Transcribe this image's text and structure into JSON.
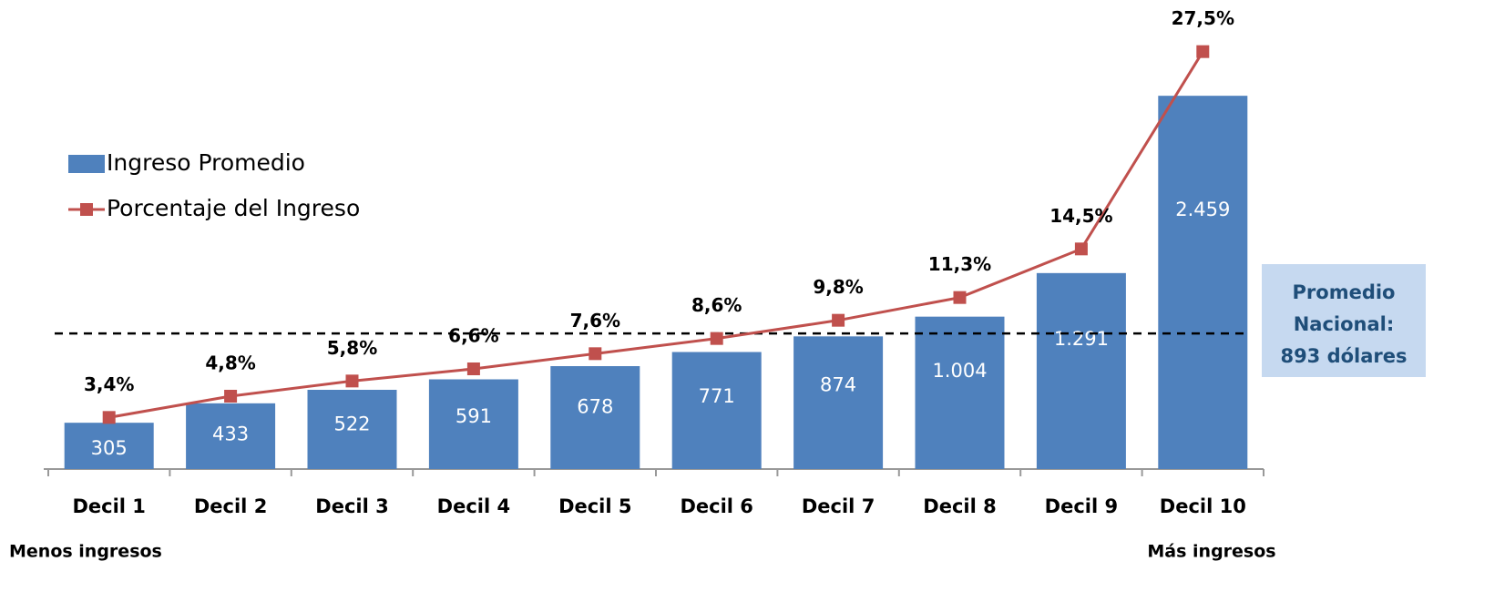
{
  "chart_data": {
    "type": "bar_line",
    "categories": [
      "Decil 1",
      "Decil 2",
      "Decil 3",
      "Decil 4",
      "Decil 5",
      "Decil 6",
      "Decil 7",
      "Decil 8",
      "Decil 9",
      "Decil 10"
    ],
    "series": [
      {
        "name": "Ingreso Promedio",
        "color": "#4f81bd",
        "type": "bar",
        "values": [
          305,
          433,
          522,
          591,
          678,
          771,
          874,
          1004,
          1291,
          2459
        ],
        "value_labels": [
          "305",
          "433",
          "522",
          "591",
          "678",
          "771",
          "874",
          "1.004",
          "1.291",
          "2.459"
        ]
      },
      {
        "name": "Porcentaje del Ingreso",
        "color": "#c0504d",
        "type": "line",
        "axis": "y2",
        "values": [
          3.4,
          4.8,
          5.8,
          6.6,
          7.6,
          8.6,
          9.8,
          11.3,
          14.5,
          27.5
        ],
        "value_labels": [
          "3,4%",
          "4,8%",
          "5,8%",
          "6,6%",
          "7,6%",
          "8,6%",
          "9,8%",
          "11,3%",
          "14,5%",
          "27,5%"
        ]
      }
    ],
    "ylim": [
      0,
      3000
    ],
    "y2lim": [
      0,
      30
    ],
    "reference_line": {
      "value": 893,
      "label": [
        "Promedio",
        "Nacional:",
        "893 dólares"
      ]
    },
    "left_note": "Menos ingresos",
    "right_note": "Más ingresos",
    "legend": "upper left"
  }
}
